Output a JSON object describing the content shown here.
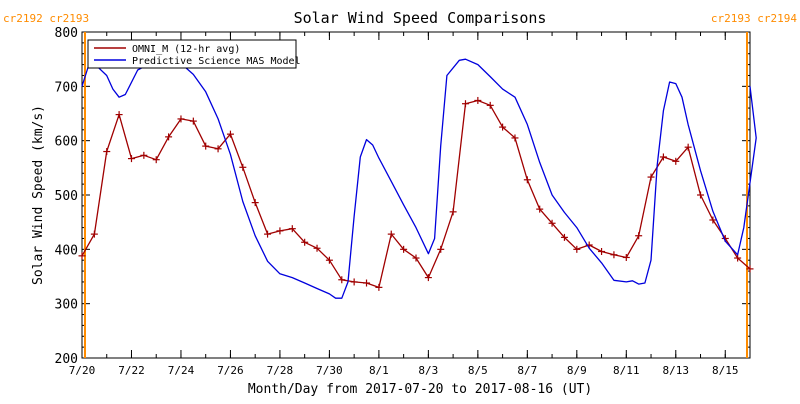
{
  "chart_data": {
    "type": "line",
    "title": "Solar Wind Speed Comparisons",
    "xlabel": "Month/Day from 2017-07-20 to 2017-08-16 (UT)",
    "ylabel": "Solar Wind Speed (km/s)",
    "ylim": [
      200,
      800
    ],
    "xlim": [
      "2017-07-20",
      "2017-08-16"
    ],
    "grid": false,
    "legend_position": "top-left",
    "y_ticks": [
      200,
      300,
      400,
      500,
      600,
      700,
      800
    ],
    "x_ticks": [
      {
        "date": "2017-07-20",
        "label": "7/20"
      },
      {
        "date": "2017-07-22",
        "label": "7/22"
      },
      {
        "date": "2017-07-24",
        "label": "7/24"
      },
      {
        "date": "2017-07-26",
        "label": "7/26"
      },
      {
        "date": "2017-07-28",
        "label": "7/28"
      },
      {
        "date": "2017-07-30",
        "label": "7/30"
      },
      {
        "date": "2017-08-01",
        "label": "8/1"
      },
      {
        "date": "2017-08-03",
        "label": "8/3"
      },
      {
        "date": "2017-08-05",
        "label": "8/5"
      },
      {
        "date": "2017-08-07",
        "label": "8/7"
      },
      {
        "date": "2017-08-09",
        "label": "8/9"
      },
      {
        "date": "2017-08-11",
        "label": "8/11"
      },
      {
        "date": "2017-08-13",
        "label": "8/13"
      },
      {
        "date": "2017-08-15",
        "label": "8/15"
      }
    ],
    "rotation_markers": [
      {
        "date": "2017-07-20",
        "label": "cr2192 cr2193",
        "align": "left"
      },
      {
        "date": "2017-08-16",
        "label": "cr2193 cr2194",
        "align": "right"
      }
    ],
    "series": [
      {
        "name": "OMNI_M (12-hr avg)",
        "color": "#a00000",
        "marker": "plus",
        "points": [
          [
            "2017-07-20 00:00",
            388
          ],
          [
            "2017-07-20 12:00",
            428
          ],
          [
            "2017-07-21 00:00",
            580
          ],
          [
            "2017-07-21 12:00",
            648
          ],
          [
            "2017-07-22 00:00",
            567
          ],
          [
            "2017-07-22 12:00",
            573
          ],
          [
            "2017-07-23 00:00",
            565
          ],
          [
            "2017-07-23 12:00",
            607
          ],
          [
            "2017-07-24 00:00",
            640
          ],
          [
            "2017-07-24 12:00",
            636
          ],
          [
            "2017-07-25 00:00",
            590
          ],
          [
            "2017-07-25 12:00",
            585
          ],
          [
            "2017-07-26 00:00",
            612
          ],
          [
            "2017-07-26 12:00",
            551
          ],
          [
            "2017-07-27 00:00",
            486
          ],
          [
            "2017-07-27 12:00",
            428
          ],
          [
            "2017-07-28 00:00",
            434
          ],
          [
            "2017-07-28 12:00",
            438
          ],
          [
            "2017-07-29 00:00",
            413
          ],
          [
            "2017-07-29 12:00",
            402
          ],
          [
            "2017-07-30 00:00",
            380
          ],
          [
            "2017-07-30 12:00",
            344
          ],
          [
            "2017-07-31 00:00",
            340
          ],
          [
            "2017-07-31 12:00",
            338
          ],
          [
            "2017-08-01 00:00",
            330
          ],
          [
            "2017-08-01 12:00",
            428
          ],
          [
            "2017-08-02 00:00",
            400
          ],
          [
            "2017-08-02 12:00",
            384
          ],
          [
            "2017-08-03 00:00",
            348
          ],
          [
            "2017-08-03 12:00",
            400
          ],
          [
            "2017-08-04 00:00",
            469
          ],
          [
            "2017-08-04 12:00",
            668
          ],
          [
            "2017-08-05 00:00",
            674
          ],
          [
            "2017-08-05 12:00",
            665
          ],
          [
            "2017-08-06 00:00",
            625
          ],
          [
            "2017-08-06 12:00",
            605
          ],
          [
            "2017-08-07 00:00",
            528
          ],
          [
            "2017-08-07 12:00",
            474
          ],
          [
            "2017-08-08 00:00",
            448
          ],
          [
            "2017-08-08 12:00",
            422
          ],
          [
            "2017-08-09 00:00",
            400
          ],
          [
            "2017-08-09 12:00",
            408
          ],
          [
            "2017-08-10 00:00",
            396
          ],
          [
            "2017-08-10 12:00",
            390
          ],
          [
            "2017-08-11 00:00",
            385
          ],
          [
            "2017-08-11 12:00",
            425
          ],
          [
            "2017-08-12 00:00",
            533
          ],
          [
            "2017-08-12 12:00",
            570
          ],
          [
            "2017-08-13 00:00",
            562
          ],
          [
            "2017-08-13 12:00",
            588
          ],
          [
            "2017-08-14 00:00",
            500
          ],
          [
            "2017-08-14 12:00",
            454
          ],
          [
            "2017-08-15 00:00",
            420
          ],
          [
            "2017-08-15 12:00",
            384
          ],
          [
            "2017-08-16 00:00",
            364
          ]
        ]
      },
      {
        "name": "Predictive Science MAS Model",
        "color": "#0000dd",
        "marker": "none",
        "points": [
          [
            "2017-07-20 00:00",
            700
          ],
          [
            "2017-07-20 06:00",
            736
          ],
          [
            "2017-07-20 14:00",
            738
          ],
          [
            "2017-07-21 00:00",
            720
          ],
          [
            "2017-07-21 06:00",
            695
          ],
          [
            "2017-07-21 12:00",
            680
          ],
          [
            "2017-07-21 18:00",
            685
          ],
          [
            "2017-07-22 06:00",
            730
          ],
          [
            "2017-07-22 18:00",
            742
          ],
          [
            "2017-07-23 12:00",
            744
          ],
          [
            "2017-07-24 00:00",
            742
          ],
          [
            "2017-07-24 12:00",
            722
          ],
          [
            "2017-07-25 00:00",
            690
          ],
          [
            "2017-07-25 12:00",
            640
          ],
          [
            "2017-07-26 00:00",
            575
          ],
          [
            "2017-07-26 12:00",
            488
          ],
          [
            "2017-07-27 00:00",
            425
          ],
          [
            "2017-07-27 12:00",
            378
          ],
          [
            "2017-07-28 00:00",
            355
          ],
          [
            "2017-07-28 12:00",
            348
          ],
          [
            "2017-07-29 00:00",
            338
          ],
          [
            "2017-07-29 12:00",
            328
          ],
          [
            "2017-07-30 00:00",
            318
          ],
          [
            "2017-07-30 06:00",
            310
          ],
          [
            "2017-07-30 12:00",
            310
          ],
          [
            "2017-07-30 18:00",
            340
          ],
          [
            "2017-07-31 00:00",
            460
          ],
          [
            "2017-07-31 06:00",
            570
          ],
          [
            "2017-07-31 12:00",
            602
          ],
          [
            "2017-07-31 18:00",
            592
          ],
          [
            "2017-08-01 00:00",
            568
          ],
          [
            "2017-08-01 12:00",
            525
          ],
          [
            "2017-08-02 00:00",
            482
          ],
          [
            "2017-08-02 12:00",
            440
          ],
          [
            "2017-08-03 00:00",
            392
          ],
          [
            "2017-08-03 06:00",
            420
          ],
          [
            "2017-08-03 12:00",
            590
          ],
          [
            "2017-08-03 18:00",
            720
          ],
          [
            "2017-08-04 06:00",
            748
          ],
          [
            "2017-08-04 12:00",
            750
          ],
          [
            "2017-08-05 00:00",
            740
          ],
          [
            "2017-08-05 12:00",
            718
          ],
          [
            "2017-08-06 00:00",
            695
          ],
          [
            "2017-08-06 12:00",
            680
          ],
          [
            "2017-08-07 00:00",
            630
          ],
          [
            "2017-08-07 12:00",
            560
          ],
          [
            "2017-08-08 00:00",
            500
          ],
          [
            "2017-08-08 12:00",
            468
          ],
          [
            "2017-08-09 00:00",
            440
          ],
          [
            "2017-08-09 12:00",
            402
          ],
          [
            "2017-08-10 00:00",
            375
          ],
          [
            "2017-08-10 12:00",
            343
          ],
          [
            "2017-08-11 00:00",
            340
          ],
          [
            "2017-08-11 06:00",
            342
          ],
          [
            "2017-08-11 12:00",
            336
          ],
          [
            "2017-08-11 18:00",
            338
          ],
          [
            "2017-08-12 00:00",
            380
          ],
          [
            "2017-08-12 06:00",
            555
          ],
          [
            "2017-08-12 12:00",
            655
          ],
          [
            "2017-08-12 18:00",
            708
          ],
          [
            "2017-08-13 00:00",
            705
          ],
          [
            "2017-08-13 06:00",
            680
          ],
          [
            "2017-08-13 12:00",
            630
          ],
          [
            "2017-08-14 00:00",
            545
          ],
          [
            "2017-08-14 12:00",
            470
          ],
          [
            "2017-08-15 00:00",
            415
          ],
          [
            "2017-08-15 12:00",
            390
          ],
          [
            "2017-08-15 18:00",
            440
          ],
          [
            "2017-08-16 06:00",
            605
          ],
          [
            "2017-08-16 00:00",
            700
          ]
        ]
      }
    ]
  },
  "colors": {
    "rotation_marker": "#ff8c00",
    "axis": "#000000",
    "background": "#ffffff"
  }
}
